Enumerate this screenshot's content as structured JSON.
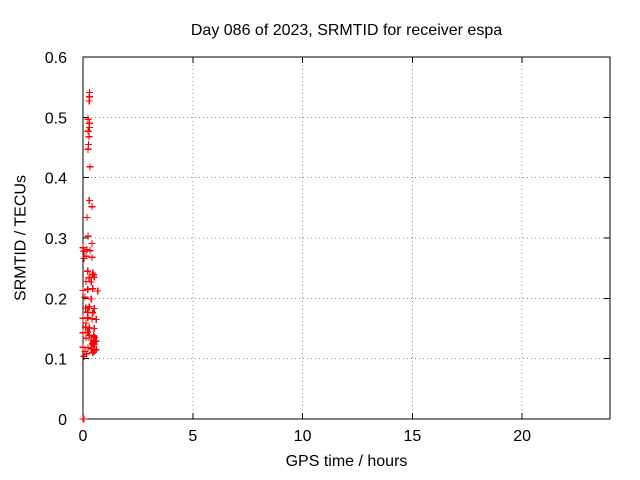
{
  "chart_data": {
    "type": "scatter",
    "title": "Day 086 of 2023, SRMTID for receiver espa",
    "xlabel": "GPS time / hours",
    "ylabel": "SRMTID / TECUs",
    "xlim": [
      0,
      24
    ],
    "ylim": [
      0,
      0.6
    ],
    "xticks": [
      0,
      5,
      10,
      15,
      20
    ],
    "yticks": [
      0,
      0.1,
      0.2,
      0.3,
      0.4,
      0.5,
      0.6
    ],
    "grid": true,
    "legend": "none",
    "marker": "plus",
    "marker_color": "#ff0000",
    "grid_color": "#909090",
    "axis_color": "#000000",
    "series": [
      {
        "name": "SRMTID",
        "points": [
          [
            0.3,
            0.541
          ],
          [
            0.29,
            0.534
          ],
          [
            0.28,
            0.527
          ],
          [
            0.23,
            0.497
          ],
          [
            0.3,
            0.49
          ],
          [
            0.29,
            0.483
          ],
          [
            0.23,
            0.477
          ],
          [
            0.27,
            0.468
          ],
          [
            0.25,
            0.455
          ],
          [
            0.23,
            0.447
          ],
          [
            0.32,
            0.418
          ],
          [
            0.29,
            0.362
          ],
          [
            0.41,
            0.352
          ],
          [
            0.18,
            0.334
          ],
          [
            0.23,
            0.303
          ],
          [
            0.41,
            0.291
          ],
          [
            0.0,
            0.284
          ],
          [
            0.18,
            0.281
          ],
          [
            0.32,
            0.279
          ],
          [
            0.05,
            0.278
          ],
          [
            0.14,
            0.27
          ],
          [
            0.41,
            0.268
          ],
          [
            0.05,
            0.266
          ],
          [
            0.21,
            0.245
          ],
          [
            0.44,
            0.242
          ],
          [
            0.48,
            0.239
          ],
          [
            0.51,
            0.235
          ],
          [
            0.28,
            0.234
          ],
          [
            0.14,
            0.228
          ],
          [
            0.37,
            0.227
          ],
          [
            0.44,
            0.216
          ],
          [
            0.21,
            0.215
          ],
          [
            0.0,
            0.213
          ],
          [
            0.67,
            0.212
          ],
          [
            0.09,
            0.202
          ],
          [
            0.37,
            0.199
          ],
          [
            0.28,
            0.186
          ],
          [
            0.12,
            0.184
          ],
          [
            0.51,
            0.183
          ],
          [
            0.21,
            0.177
          ],
          [
            0.44,
            0.176
          ],
          [
            0.21,
            0.168
          ],
          [
            0.0,
            0.167
          ],
          [
            0.41,
            0.166
          ],
          [
            0.6,
            0.165
          ],
          [
            0.14,
            0.159
          ],
          [
            0.12,
            0.152
          ],
          [
            0.28,
            0.151
          ],
          [
            0.51,
            0.15
          ],
          [
            0.21,
            0.144
          ],
          [
            0.0,
            0.143
          ],
          [
            0.28,
            0.139
          ],
          [
            0.48,
            0.138
          ],
          [
            0.51,
            0.136
          ],
          [
            0.53,
            0.135
          ],
          [
            0.14,
            0.134
          ],
          [
            0.37,
            0.131
          ],
          [
            0.6,
            0.129
          ],
          [
            0.48,
            0.127
          ],
          [
            0.44,
            0.125
          ],
          [
            0.51,
            0.124
          ],
          [
            0.46,
            0.123
          ],
          [
            0.0,
            0.119
          ],
          [
            0.23,
            0.118
          ],
          [
            0.37,
            0.116
          ],
          [
            0.6,
            0.115
          ],
          [
            0.51,
            0.113
          ],
          [
            0.09,
            0.112
          ],
          [
            0.44,
            0.11
          ],
          [
            0.16,
            0.108
          ],
          [
            0.05,
            0.104
          ],
          [
            0.0,
            0.0
          ],
          [
            0.05,
            0.0
          ]
        ]
      }
    ]
  }
}
